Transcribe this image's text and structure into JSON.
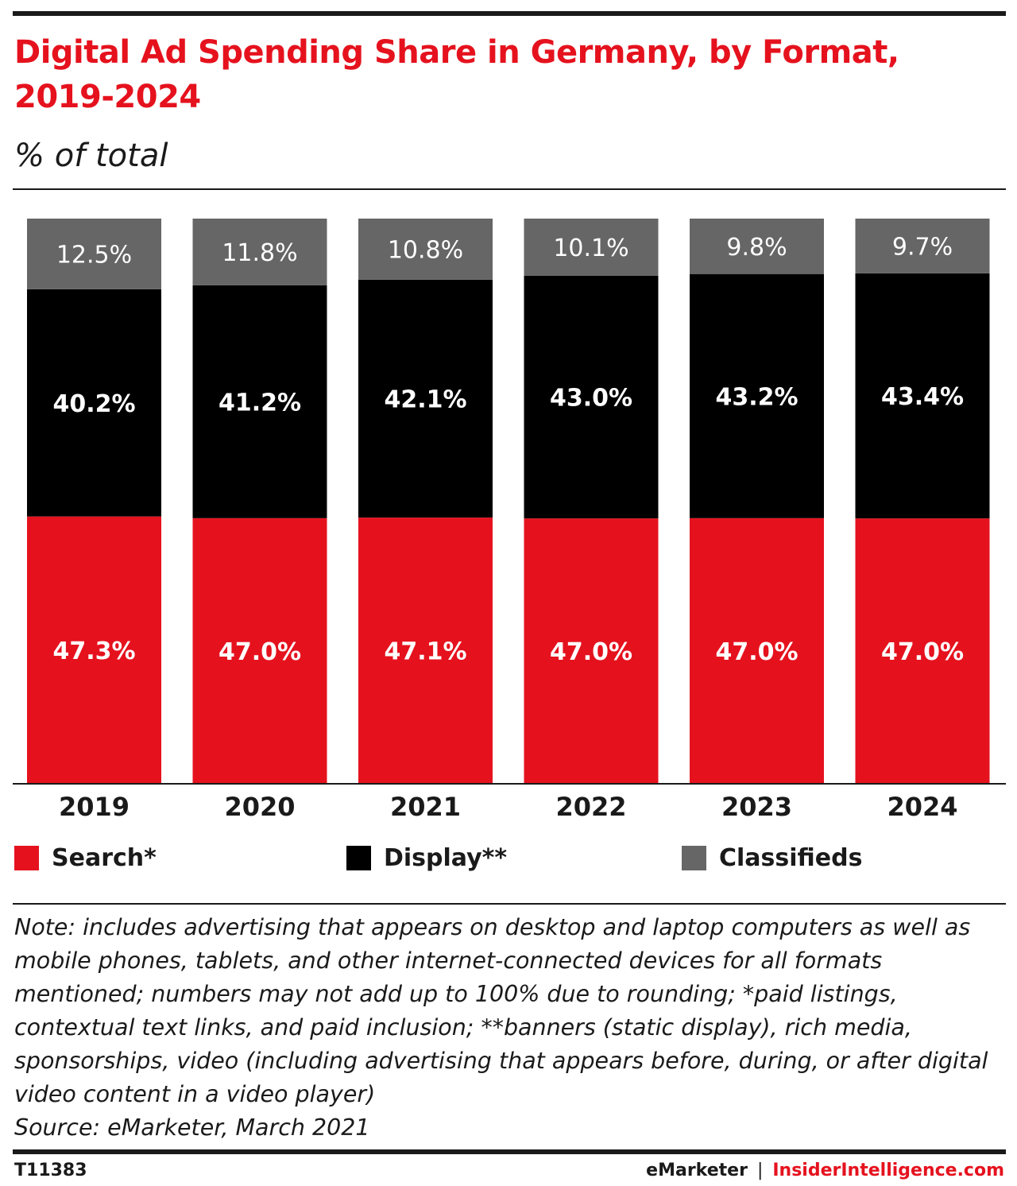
{
  "header": {
    "title": "Digital Ad Spending Share in Germany, by Format, 2019-2024",
    "subtitle": "% of total"
  },
  "colors": {
    "accent": "#e5121e",
    "search": "#e5121e",
    "display": "#000000",
    "classifieds": "#666666",
    "text": "#1a1a1a"
  },
  "chart_data": {
    "type": "bar",
    "stacked": true,
    "categories": [
      "2019",
      "2020",
      "2021",
      "2022",
      "2023",
      "2024"
    ],
    "series": [
      {
        "name": "Search*",
        "values": [
          47.3,
          47.0,
          47.1,
          47.0,
          47.0,
          47.0
        ],
        "labels": [
          "47.3%",
          "47.0%",
          "47.1%",
          "47.0%",
          "47.0%",
          "47.0%"
        ],
        "color": "#e5121e"
      },
      {
        "name": "Display**",
        "values": [
          40.2,
          41.2,
          42.1,
          43.0,
          43.2,
          43.4
        ],
        "labels": [
          "40.2%",
          "41.2%",
          "42.1%",
          "43.0%",
          "43.2%",
          "43.4%"
        ],
        "color": "#000000"
      },
      {
        "name": "Classifieds",
        "values": [
          12.5,
          11.8,
          10.8,
          10.1,
          9.8,
          9.7
        ],
        "labels": [
          "12.5%",
          "11.8%",
          "10.8%",
          "10.1%",
          "9.8%",
          "9.7%"
        ],
        "color": "#666666"
      }
    ],
    "ylim": [
      0,
      100
    ],
    "grid": false,
    "legend": "bottom"
  },
  "legend": {
    "items": [
      {
        "label": "Search*",
        "color": "#e5121e"
      },
      {
        "label": "Display**",
        "color": "#000000"
      },
      {
        "label": "Classifieds",
        "color": "#666666"
      }
    ]
  },
  "footer": {
    "note": "Note: includes advertising that appears on desktop and laptop computers as well as mobile phones, tablets, and other internet-connected devices for all formats mentioned; numbers may not add up to 100% due to rounding; *paid listings, contextual text links, and paid inclusion; **banners (static display), rich media, sponsorships, video (including advertising that appears before, during, or after digital video content in a video player)",
    "source": "Source: eMarketer, March 2021",
    "code": "T11383",
    "brand_emarketer": "eMarketer",
    "brand_separator": "|",
    "brand_insider": "InsiderIntelligence.com"
  }
}
